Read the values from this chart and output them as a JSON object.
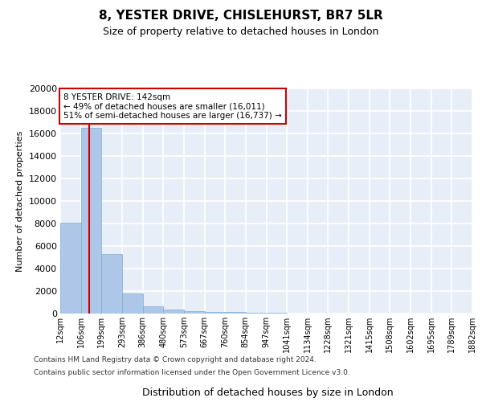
{
  "title": "8, YESTER DRIVE, CHISLEHURST, BR7 5LR",
  "subtitle": "Size of property relative to detached houses in London",
  "xlabel": "Distribution of detached houses by size in London",
  "ylabel": "Number of detached properties",
  "bar_values": [
    8100,
    16500,
    5300,
    1800,
    650,
    330,
    220,
    170,
    130,
    80,
    50,
    30,
    20,
    15,
    10,
    8,
    5,
    4,
    3,
    2
  ],
  "bin_labels": [
    "12sqm",
    "106sqm",
    "199sqm",
    "293sqm",
    "386sqm",
    "480sqm",
    "573sqm",
    "667sqm",
    "760sqm",
    "854sqm",
    "947sqm",
    "1041sqm",
    "1134sqm",
    "1228sqm",
    "1321sqm",
    "1415sqm",
    "1508sqm",
    "1602sqm",
    "1695sqm",
    "1789sqm",
    "1882sqm"
  ],
  "bar_color": "#aec6e8",
  "bar_edge_color": "#7aadd4",
  "background_color": "#e8eef8",
  "grid_color": "#ffffff",
  "annotation_title": "8 YESTER DRIVE: 142sqm",
  "annotation_line1": "← 49% of detached houses are smaller (16,011)",
  "annotation_line2": "51% of semi-detached houses are larger (16,737) →",
  "annotation_box_color": "#ffffff",
  "annotation_border_color": "#cc0000",
  "footer_line1": "Contains HM Land Registry data © Crown copyright and database right 2024.",
  "footer_line2": "Contains public sector information licensed under the Open Government Licence v3.0.",
  "ylim": [
    0,
    20000
  ],
  "yticks": [
    0,
    2000,
    4000,
    6000,
    8000,
    10000,
    12000,
    14000,
    16000,
    18000,
    20000
  ]
}
